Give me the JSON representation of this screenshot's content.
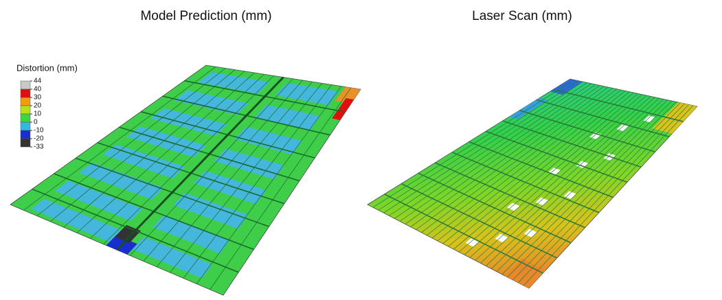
{
  "left_title": "Model Prediction (mm)",
  "right_title": "Laser Scan (mm)",
  "legend": {
    "title": "Distortion (mm)",
    "labels": [
      "44",
      "40",
      "30",
      "20",
      "10",
      "0",
      "-10",
      "-20",
      "-33"
    ]
  }
}
